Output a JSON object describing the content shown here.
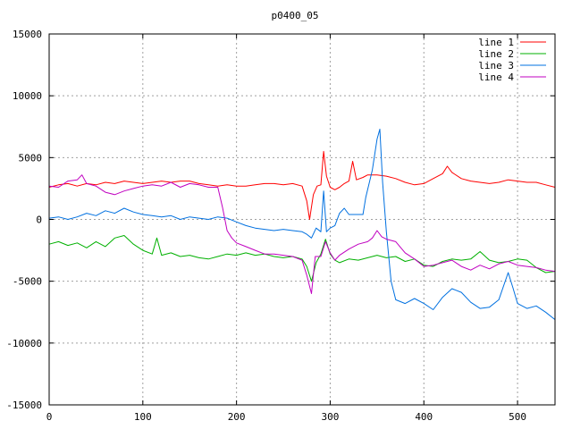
{
  "chart_data": {
    "type": "line",
    "title": "p0400_05",
    "xlabel": "",
    "ylabel": "",
    "xlim": [
      0,
      540
    ],
    "ylim": [
      -15000,
      15000
    ],
    "grid": true,
    "legend_position": "top-right",
    "x_ticks": [
      "0",
      "100",
      "200",
      "300",
      "400",
      "500"
    ],
    "x_tick_values": [
      0,
      100,
      200,
      300,
      400,
      500
    ],
    "y_ticks": [
      "15000",
      "10000",
      "5000",
      "0",
      "-5000",
      "-10000",
      "-15000"
    ],
    "y_tick_values": [
      15000,
      10000,
      5000,
      0,
      -5000,
      -10000,
      -15000
    ],
    "series": [
      {
        "name": "line 1",
        "color": "#ff0000",
        "points": [
          [
            0,
            2600
          ],
          [
            10,
            2800
          ],
          [
            20,
            2900
          ],
          [
            30,
            2700
          ],
          [
            40,
            2900
          ],
          [
            50,
            2800
          ],
          [
            60,
            3000
          ],
          [
            70,
            2900
          ],
          [
            80,
            3100
          ],
          [
            90,
            3000
          ],
          [
            100,
            2900
          ],
          [
            110,
            3000
          ],
          [
            120,
            3100
          ],
          [
            130,
            3000
          ],
          [
            140,
            3100
          ],
          [
            150,
            3100
          ],
          [
            160,
            2900
          ],
          [
            170,
            2800
          ],
          [
            180,
            2700
          ],
          [
            190,
            2800
          ],
          [
            200,
            2700
          ],
          [
            210,
            2700
          ],
          [
            220,
            2800
          ],
          [
            230,
            2900
          ],
          [
            240,
            2900
          ],
          [
            250,
            2800
          ],
          [
            260,
            2900
          ],
          [
            270,
            2700
          ],
          [
            275,
            1500
          ],
          [
            278,
            0
          ],
          [
            282,
            2000
          ],
          [
            286,
            2700
          ],
          [
            290,
            2800
          ],
          [
            293,
            5500
          ],
          [
            296,
            3500
          ],
          [
            300,
            2600
          ],
          [
            305,
            2400
          ],
          [
            310,
            2600
          ],
          [
            315,
            2900
          ],
          [
            320,
            3100
          ],
          [
            324,
            4700
          ],
          [
            328,
            3200
          ],
          [
            335,
            3400
          ],
          [
            340,
            3600
          ],
          [
            350,
            3600
          ],
          [
            360,
            3500
          ],
          [
            370,
            3300
          ],
          [
            380,
            3000
          ],
          [
            390,
            2800
          ],
          [
            400,
            2900
          ],
          [
            410,
            3300
          ],
          [
            420,
            3700
          ],
          [
            425,
            4300
          ],
          [
            430,
            3800
          ],
          [
            440,
            3300
          ],
          [
            450,
            3100
          ],
          [
            460,
            3000
          ],
          [
            470,
            2900
          ],
          [
            480,
            3000
          ],
          [
            490,
            3200
          ],
          [
            500,
            3100
          ],
          [
            510,
            3000
          ],
          [
            520,
            3000
          ],
          [
            530,
            2800
          ],
          [
            540,
            2600
          ]
        ]
      },
      {
        "name": "line 2",
        "color": "#00b000",
        "points": [
          [
            0,
            -2000
          ],
          [
            10,
            -1800
          ],
          [
            20,
            -2100
          ],
          [
            30,
            -1900
          ],
          [
            40,
            -2300
          ],
          [
            50,
            -1800
          ],
          [
            60,
            -2200
          ],
          [
            70,
            -1500
          ],
          [
            80,
            -1300
          ],
          [
            90,
            -2000
          ],
          [
            100,
            -2500
          ],
          [
            110,
            -2800
          ],
          [
            115,
            -1500
          ],
          [
            120,
            -2900
          ],
          [
            130,
            -2700
          ],
          [
            140,
            -3000
          ],
          [
            150,
            -2900
          ],
          [
            160,
            -3100
          ],
          [
            170,
            -3200
          ],
          [
            180,
            -3000
          ],
          [
            190,
            -2800
          ],
          [
            200,
            -2900
          ],
          [
            210,
            -2700
          ],
          [
            220,
            -2900
          ],
          [
            230,
            -2800
          ],
          [
            240,
            -3000
          ],
          [
            250,
            -3100
          ],
          [
            260,
            -3000
          ],
          [
            270,
            -3200
          ],
          [
            275,
            -3800
          ],
          [
            280,
            -5000
          ],
          [
            285,
            -3500
          ],
          [
            290,
            -2800
          ],
          [
            295,
            -1600
          ],
          [
            300,
            -2800
          ],
          [
            305,
            -3300
          ],
          [
            310,
            -3500
          ],
          [
            320,
            -3200
          ],
          [
            330,
            -3300
          ],
          [
            340,
            -3100
          ],
          [
            350,
            -2900
          ],
          [
            360,
            -3100
          ],
          [
            370,
            -3000
          ],
          [
            380,
            -3400
          ],
          [
            390,
            -3200
          ],
          [
            400,
            -3700
          ],
          [
            410,
            -3800
          ],
          [
            420,
            -3400
          ],
          [
            430,
            -3200
          ],
          [
            440,
            -3300
          ],
          [
            450,
            -3200
          ],
          [
            460,
            -2600
          ],
          [
            470,
            -3300
          ],
          [
            480,
            -3500
          ],
          [
            490,
            -3400
          ],
          [
            500,
            -3200
          ],
          [
            510,
            -3300
          ],
          [
            520,
            -3900
          ],
          [
            530,
            -4300
          ],
          [
            540,
            -4200
          ]
        ]
      },
      {
        "name": "line 3",
        "color": "#0070e0",
        "points": [
          [
            0,
            100
          ],
          [
            10,
            200
          ],
          [
            20,
            0
          ],
          [
            30,
            200
          ],
          [
            40,
            500
          ],
          [
            50,
            300
          ],
          [
            60,
            700
          ],
          [
            70,
            500
          ],
          [
            80,
            900
          ],
          [
            90,
            600
          ],
          [
            100,
            400
          ],
          [
            110,
            300
          ],
          [
            120,
            200
          ],
          [
            130,
            300
          ],
          [
            140,
            0
          ],
          [
            150,
            200
          ],
          [
            160,
            100
          ],
          [
            170,
            0
          ],
          [
            180,
            200
          ],
          [
            190,
            100
          ],
          [
            200,
            -200
          ],
          [
            210,
            -500
          ],
          [
            220,
            -700
          ],
          [
            230,
            -800
          ],
          [
            240,
            -900
          ],
          [
            250,
            -800
          ],
          [
            260,
            -900
          ],
          [
            270,
            -1000
          ],
          [
            275,
            -1200
          ],
          [
            280,
            -1500
          ],
          [
            285,
            -700
          ],
          [
            290,
            -1000
          ],
          [
            293,
            2300
          ],
          [
            296,
            -1000
          ],
          [
            300,
            -700
          ],
          [
            305,
            -500
          ],
          [
            310,
            500
          ],
          [
            315,
            900
          ],
          [
            320,
            400
          ],
          [
            330,
            400
          ],
          [
            335,
            400
          ],
          [
            338,
            1800
          ],
          [
            345,
            4000
          ],
          [
            350,
            6500
          ],
          [
            353,
            7300
          ],
          [
            356,
            3000
          ],
          [
            360,
            -1000
          ],
          [
            365,
            -5000
          ],
          [
            370,
            -6500
          ],
          [
            380,
            -6800
          ],
          [
            390,
            -6400
          ],
          [
            400,
            -6800
          ],
          [
            410,
            -7300
          ],
          [
            420,
            -6300
          ],
          [
            430,
            -5600
          ],
          [
            440,
            -5900
          ],
          [
            450,
            -6700
          ],
          [
            460,
            -7200
          ],
          [
            470,
            -7100
          ],
          [
            480,
            -6500
          ],
          [
            490,
            -4300
          ],
          [
            495,
            -5500
          ],
          [
            500,
            -6800
          ],
          [
            510,
            -7200
          ],
          [
            520,
            -7000
          ],
          [
            530,
            -7500
          ],
          [
            540,
            -8100
          ]
        ]
      },
      {
        "name": "line 4",
        "color": "#c000c0",
        "points": [
          [
            0,
            2700
          ],
          [
            10,
            2600
          ],
          [
            20,
            3100
          ],
          [
            30,
            3200
          ],
          [
            35,
            3600
          ],
          [
            40,
            2900
          ],
          [
            50,
            2700
          ],
          [
            60,
            2200
          ],
          [
            70,
            2000
          ],
          [
            80,
            2300
          ],
          [
            90,
            2500
          ],
          [
            100,
            2700
          ],
          [
            110,
            2800
          ],
          [
            120,
            2700
          ],
          [
            130,
            3000
          ],
          [
            140,
            2600
          ],
          [
            150,
            2900
          ],
          [
            160,
            2800
          ],
          [
            170,
            2600
          ],
          [
            180,
            2600
          ],
          [
            185,
            1000
          ],
          [
            190,
            -900
          ],
          [
            195,
            -1500
          ],
          [
            200,
            -1900
          ],
          [
            210,
            -2200
          ],
          [
            220,
            -2500
          ],
          [
            230,
            -2800
          ],
          [
            240,
            -2800
          ],
          [
            250,
            -2900
          ],
          [
            260,
            -3000
          ],
          [
            270,
            -3300
          ],
          [
            275,
            -4500
          ],
          [
            280,
            -6000
          ],
          [
            284,
            -3000
          ],
          [
            290,
            -3000
          ],
          [
            295,
            -1800
          ],
          [
            300,
            -2700
          ],
          [
            305,
            -3300
          ],
          [
            310,
            -2900
          ],
          [
            320,
            -2400
          ],
          [
            330,
            -2000
          ],
          [
            340,
            -1800
          ],
          [
            345,
            -1500
          ],
          [
            350,
            -900
          ],
          [
            355,
            -1400
          ],
          [
            360,
            -1600
          ],
          [
            370,
            -1800
          ],
          [
            380,
            -2700
          ],
          [
            390,
            -3200
          ],
          [
            400,
            -3800
          ],
          [
            410,
            -3700
          ],
          [
            420,
            -3500
          ],
          [
            430,
            -3300
          ],
          [
            440,
            -3800
          ],
          [
            450,
            -4100
          ],
          [
            460,
            -3700
          ],
          [
            470,
            -4000
          ],
          [
            480,
            -3600
          ],
          [
            490,
            -3400
          ],
          [
            500,
            -3700
          ],
          [
            510,
            -3800
          ],
          [
            520,
            -3900
          ],
          [
            530,
            -4100
          ],
          [
            540,
            -4200
          ]
        ]
      }
    ]
  }
}
